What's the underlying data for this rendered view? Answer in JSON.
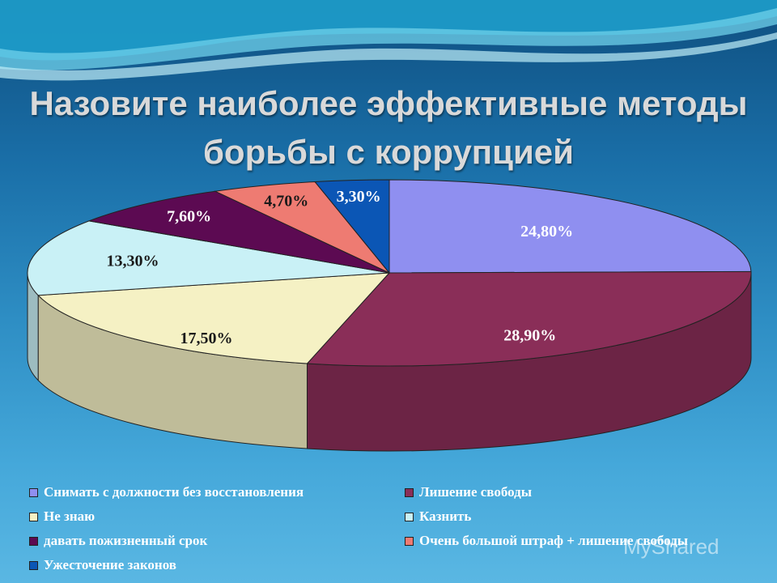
{
  "title_line1": "Назовите наиболее эффективные методы",
  "title_line2": "борьбы с коррупцией",
  "watermark": "MyShared",
  "chart_data": {
    "type": "pie",
    "title": "Назовите наиболее эффективные методы борьбы с коррупцией",
    "categories": [
      "Снимать с должности без восстановления",
      "Лишение свободы",
      "Не знаю",
      "Казнить",
      "давать пожизненный срок",
      "Очень большой штраф + лишение свободы",
      "Ужесточение законов"
    ],
    "values": [
      24.8,
      28.9,
      17.5,
      13.3,
      7.6,
      4.7,
      3.3
    ],
    "labels": [
      "24,80%",
      "28,90%",
      "17,50%",
      "13,30%",
      "7,60%",
      "4,70%",
      "3,30%"
    ],
    "colors": [
      "#8f8ff0",
      "#8a2e58",
      "#f5f1c4",
      "#c9f1f6",
      "#5c0a52",
      "#ee7b72",
      "#0b56b5"
    ],
    "legend_position": "bottom"
  }
}
